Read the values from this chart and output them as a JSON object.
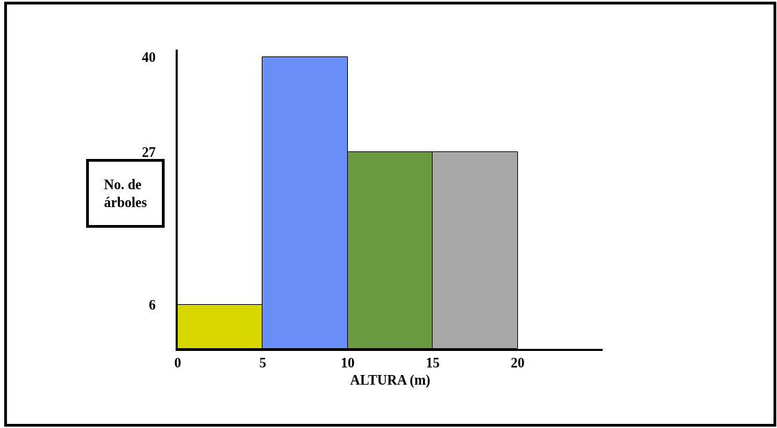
{
  "chart_data": {
    "type": "histogram",
    "xlabel": "ALTURA (m)",
    "ylabel": "No. de árboles",
    "bins": [
      0,
      5,
      10,
      15,
      20
    ],
    "values": [
      6,
      40,
      27,
      27
    ],
    "colors": [
      "#d8d800",
      "#6a8ef8",
      "#6a9a40",
      "#a8a8a8"
    ],
    "xlim": [
      0,
      25
    ],
    "xticks": [
      0,
      5,
      10,
      15,
      20
    ],
    "ylim": [
      0,
      41
    ],
    "yticks": [
      6,
      27,
      40
    ]
  }
}
